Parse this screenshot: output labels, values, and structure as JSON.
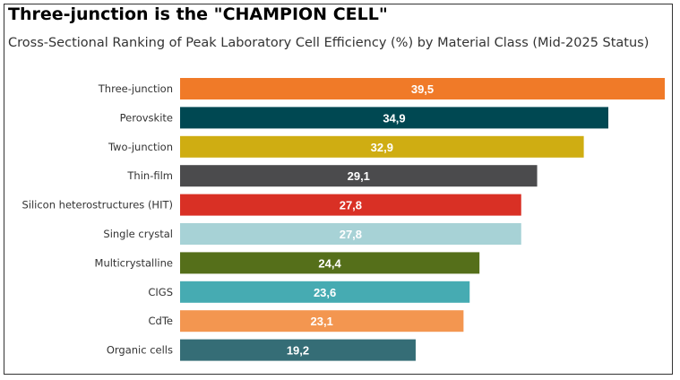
{
  "chart_data": {
    "type": "bar",
    "orientation": "horizontal",
    "title": "Three-junction is the \"CHAMPION CELL\"",
    "subtitle": "Cross-Sectional Ranking of Peak Laboratory Cell Efficiency (%) by Material Class (Mid-2025 Status)",
    "categories": [
      "Three-junction",
      "Perovskite",
      "Two-junction",
      "Thin-film",
      "Silicon heterostructures (HIT)",
      "Single crystal",
      "Multicrystalline",
      "CIGS",
      "CdTe",
      "Organic cells"
    ],
    "values": [
      39.5,
      34.9,
      32.9,
      29.1,
      27.8,
      27.8,
      24.4,
      23.6,
      23.1,
      19.2
    ],
    "value_labels": [
      "39,5",
      "34,9",
      "32,9",
      "29,1",
      "27,8",
      "27,8",
      "24,4",
      "23,6",
      "23,1",
      "19,2"
    ],
    "colors": [
      "#F07A28",
      "#004852",
      "#CFAD12",
      "#4B4B4D",
      "#D93025",
      "#A7D2D6",
      "#556F1A",
      "#46ABB2",
      "#F39650",
      "#356D76"
    ],
    "xlim": [
      0,
      39.5
    ],
    "grid": false,
    "legend": "none"
  }
}
